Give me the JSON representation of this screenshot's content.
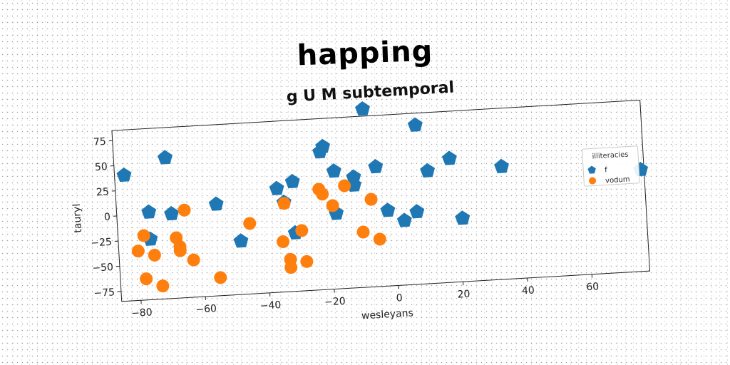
{
  "page_title": "happing",
  "chart_data": {
    "type": "scatter",
    "title": "g U M subtemporal",
    "xlabel": "wesleyans",
    "ylabel": "tauryl",
    "xlim": [
      -86,
      78
    ],
    "ylim": [
      -85,
      85
    ],
    "xticks": [
      -80,
      -60,
      -40,
      -20,
      0,
      20,
      40,
      60
    ],
    "yticks": [
      -75,
      -50,
      -25,
      0,
      25,
      50,
      75
    ],
    "grid": false,
    "legend": {
      "title": "illiteracies",
      "placement": "right"
    },
    "series": [
      {
        "name": "f",
        "marker": "pentagon",
        "color": "#1f77b4",
        "points": [
          {
            "x": -83,
            "y": 40
          },
          {
            "x": -70,
            "y": 55
          },
          {
            "x": -76,
            "y": 2
          },
          {
            "x": -76,
            "y": -25
          },
          {
            "x": -69,
            "y": -1
          },
          {
            "x": -55,
            "y": 6
          },
          {
            "x": -48,
            "y": -32
          },
          {
            "x": -36,
            "y": 18
          },
          {
            "x": -34,
            "y": 4
          },
          {
            "x": -31,
            "y": 24
          },
          {
            "x": -31,
            "y": -27
          },
          {
            "x": -22,
            "y": 52
          },
          {
            "x": -21,
            "y": 57
          },
          {
            "x": -18,
            "y": 32
          },
          {
            "x": -18,
            "y": -10
          },
          {
            "x": -12,
            "y": 25
          },
          {
            "x": -12,
            "y": 17
          },
          {
            "x": -8,
            "y": 92
          },
          {
            "x": -5,
            "y": 34
          },
          {
            "x": -2,
            "y": -10
          },
          {
            "x": 3,
            "y": -21
          },
          {
            "x": 7,
            "y": -13
          },
          {
            "x": 8,
            "y": 73
          },
          {
            "x": 11,
            "y": 27
          },
          {
            "x": 18,
            "y": 38
          },
          {
            "x": 21,
            "y": -22
          },
          {
            "x": 34,
            "y": 27
          },
          {
            "x": 77,
            "y": 16
          }
        ]
      },
      {
        "name": "vodum",
        "marker": "circle",
        "color": "#ff7f0e",
        "points": [
          {
            "x": -78,
            "y": -21
          },
          {
            "x": -80,
            "y": -36
          },
          {
            "x": -75,
            "y": -41
          },
          {
            "x": -78,
            "y": -64
          },
          {
            "x": -73,
            "y": -72
          },
          {
            "x": -65,
            "y": 2
          },
          {
            "x": -68,
            "y": -25
          },
          {
            "x": -67,
            "y": -34
          },
          {
            "x": -67,
            "y": -38
          },
          {
            "x": -63,
            "y": -48
          },
          {
            "x": -55,
            "y": -67
          },
          {
            "x": -45,
            "y": -15
          },
          {
            "x": -34,
            "y": 3
          },
          {
            "x": -35,
            "y": -35
          },
          {
            "x": -33,
            "y": -53
          },
          {
            "x": -33,
            "y": -61
          },
          {
            "x": -29,
            "y": -25
          },
          {
            "x": -28,
            "y": -56
          },
          {
            "x": -23,
            "y": 15
          },
          {
            "x": -22,
            "y": 10
          },
          {
            "x": -19,
            "y": -2
          },
          {
            "x": -15,
            "y": 17
          },
          {
            "x": -10,
            "y": -30
          },
          {
            "x": -7,
            "y": 2
          },
          {
            "x": -5,
            "y": -38
          }
        ]
      }
    ]
  }
}
